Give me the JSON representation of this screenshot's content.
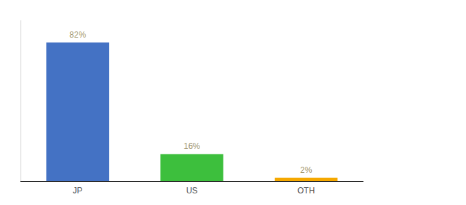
{
  "chart_data": {
    "type": "bar",
    "categories": [
      "JP",
      "US",
      "OTH"
    ],
    "values": [
      82,
      16,
      2
    ],
    "value_labels": [
      "82%",
      "16%",
      "2%"
    ],
    "colors": [
      "#4472c4",
      "#3dbf3d",
      "#f5a800"
    ],
    "ylim": [
      0,
      95
    ],
    "data_labels": true,
    "tick_labels": "x",
    "grid": false
  }
}
